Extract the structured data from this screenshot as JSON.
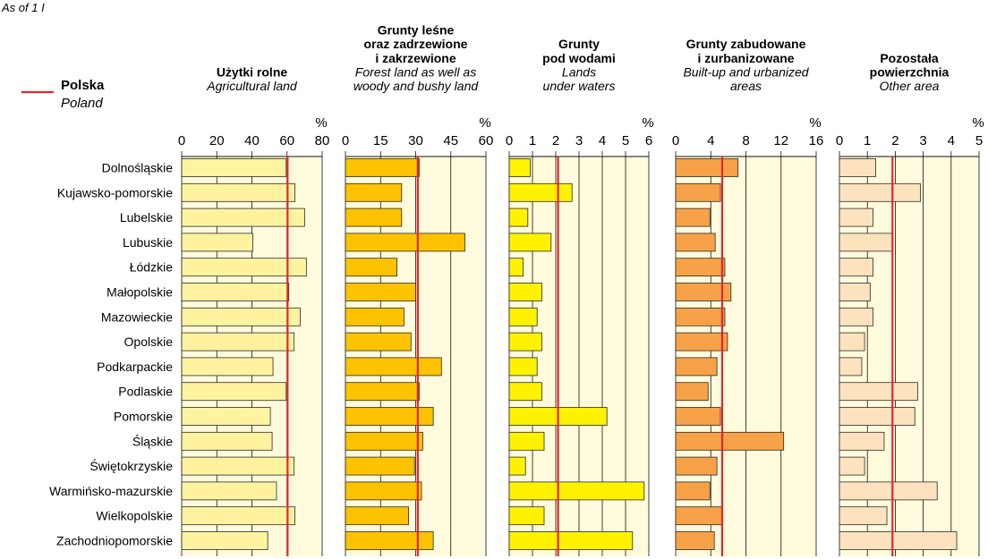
{
  "header": {
    "as_of": "As of  1 I"
  },
  "legend": {
    "title": "Polska",
    "subtitle": "Poland",
    "line_color": "#e3262c"
  },
  "unit": "%",
  "chart_data": {
    "type": "bar",
    "orientation": "horizontal",
    "categories": [
      "Dolnośląskie",
      "Kujawsko-pomorskie",
      "Lubelskie",
      "Lubuskie",
      "Łódzkie",
      "Małopolskie",
      "Mazowieckie",
      "Opolskie",
      "Podkarpackie",
      "Podlaskie",
      "Pomorskie",
      "Śląskie",
      "Świętokrzyskie",
      "Warmińsko-mazurskie",
      "Wielkopolskie",
      "Zachodniopomorskie"
    ],
    "grid": true,
    "panels": [
      {
        "title": [
          "Użytki rolne"
        ],
        "subtitle": [
          "Agricultural land"
        ],
        "ticks": [
          "0",
          "20",
          "40",
          "60",
          "80"
        ],
        "xlim": [
          0,
          80
        ],
        "reference": 60.3,
        "color": "#fff3a0",
        "bg": "#fffbdc",
        "values": [
          59.5,
          64.5,
          70.0,
          40.5,
          71.0,
          61.0,
          67.5,
          64.0,
          52.0,
          59.5,
          50.5,
          51.5,
          64.0,
          54.0,
          64.5,
          49.0
        ]
      },
      {
        "title": [
          "Grunty leśne",
          "oraz zadrzewione",
          "i zakrzewione"
        ],
        "subtitle": [
          "Forest land as well as",
          "woody and bushy land"
        ],
        "ticks": [
          "0",
          "15",
          "30",
          "45",
          "60"
        ],
        "xlim": [
          0,
          60
        ],
        "reference": 30.9,
        "color": "#fdc200",
        "bg": "#fffbdc",
        "values": [
          31.5,
          24.0,
          24.0,
          51.0,
          22.0,
          30.0,
          25.0,
          28.0,
          41.0,
          31.5,
          37.5,
          33.0,
          29.5,
          32.5,
          27.0,
          37.5
        ]
      },
      {
        "title": [
          "Grunty",
          "pod wodami"
        ],
        "subtitle": [
          "Lands",
          "under waters"
        ],
        "ticks": [
          "0",
          "1",
          "2",
          "3",
          "4",
          "5",
          "6"
        ],
        "xlim": [
          0,
          6
        ],
        "reference": 2.1,
        "color": "#fff200",
        "bg": "#fffbdc",
        "values": [
          0.9,
          2.7,
          0.8,
          1.8,
          0.6,
          1.4,
          1.2,
          1.4,
          1.2,
          1.4,
          4.2,
          1.5,
          0.7,
          5.8,
          1.5,
          5.3
        ]
      },
      {
        "title": [
          "Grunty zabudowane",
          "i zurbanizowane"
        ],
        "subtitle": [
          "Built-up and urbanized",
          "areas"
        ],
        "ticks": [
          "0",
          "4",
          "8",
          "12",
          "16"
        ],
        "xlim": [
          0,
          16
        ],
        "reference": 5.3,
        "color": "#f7a248",
        "bg": "#fffbdc",
        "values": [
          7.1,
          5.1,
          3.9,
          4.5,
          5.6,
          6.3,
          5.6,
          5.9,
          4.7,
          3.7,
          5.1,
          12.3,
          4.7,
          3.9,
          5.3,
          4.4
        ]
      },
      {
        "title": [
          "Pozostała",
          "powierzchnia"
        ],
        "subtitle": [
          "Other area"
        ],
        "ticks": [
          "0",
          "1",
          "2",
          "3",
          "4",
          "5"
        ],
        "xlim": [
          0,
          5
        ],
        "reference": 1.9,
        "color": "#fde3bd",
        "bg": "#fffbdc",
        "values": [
          1.3,
          2.9,
          1.2,
          1.9,
          1.2,
          1.1,
          1.2,
          0.9,
          0.8,
          2.8,
          2.7,
          1.6,
          0.9,
          3.5,
          1.7,
          4.2
        ]
      }
    ]
  }
}
